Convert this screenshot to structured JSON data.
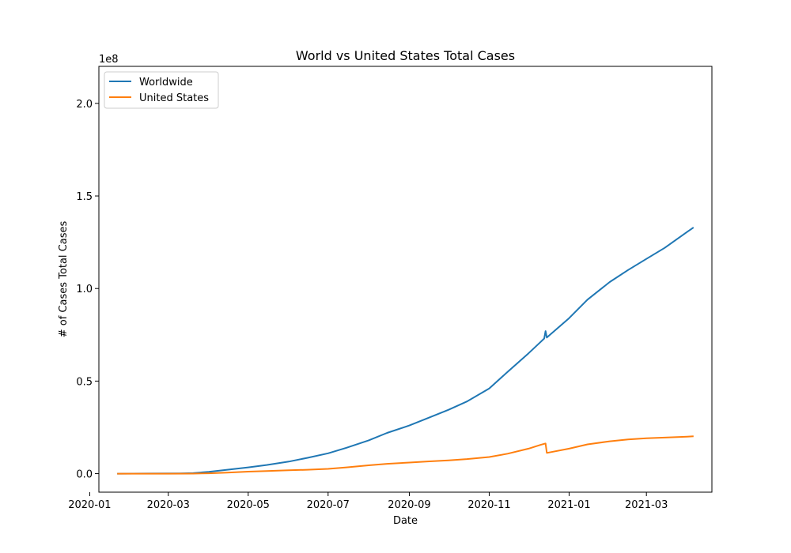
{
  "chart_data": {
    "type": "line",
    "title": "World vs United States Total Cases",
    "xlabel": "Date",
    "ylabel": "# of Cases Total Cases",
    "y_offset_label": "1e8",
    "xlim": [
      "2020-01-08",
      "2021-04-20"
    ],
    "ylim": [
      -0.1,
      2.2
    ],
    "y_multiplier": 100000000,
    "x_ticks": [
      "2020-01",
      "2020-03",
      "2020-05",
      "2020-07",
      "2020-09",
      "2020-11",
      "2021-01",
      "2021-03"
    ],
    "y_ticks": [
      "0.0",
      "0.5",
      "1.0",
      "1.5",
      "2.0"
    ],
    "y_tick_values": [
      0,
      0.5,
      1.0,
      1.5,
      2.0
    ],
    "legend_position": "upper-left",
    "grid": false,
    "series": [
      {
        "name": "Worldwide",
        "color": "#1f77b4",
        "points": [
          [
            "2020-01-22",
            0.0
          ],
          [
            "2020-02-15",
            0.0007
          ],
          [
            "2020-03-10",
            0.0012
          ],
          [
            "2020-03-20",
            0.003
          ],
          [
            "2020-04-01",
            0.01
          ],
          [
            "2020-04-15",
            0.021
          ],
          [
            "2020-05-01",
            0.034
          ],
          [
            "2020-05-15",
            0.047
          ],
          [
            "2020-06-01",
            0.065
          ],
          [
            "2020-06-15",
            0.085
          ],
          [
            "2020-07-01",
            0.11
          ],
          [
            "2020-07-15",
            0.14
          ],
          [
            "2020-08-01",
            0.18
          ],
          [
            "2020-08-15",
            0.22
          ],
          [
            "2020-09-01",
            0.26
          ],
          [
            "2020-09-15",
            0.3
          ],
          [
            "2020-10-01",
            0.345
          ],
          [
            "2020-10-15",
            0.39
          ],
          [
            "2020-11-01",
            0.46
          ],
          [
            "2020-11-15",
            0.55
          ],
          [
            "2020-12-01",
            0.65
          ],
          [
            "2020-12-10",
            0.71
          ],
          [
            "2020-12-13",
            0.73
          ],
          [
            "2020-12-14",
            0.77
          ],
          [
            "2020-12-15",
            0.735
          ],
          [
            "2021-01-01",
            0.84
          ],
          [
            "2021-01-15",
            0.94
          ],
          [
            "2021-02-01",
            1.035
          ],
          [
            "2021-02-15",
            1.1
          ],
          [
            "2021-03-01",
            1.16
          ],
          [
            "2021-03-15",
            1.22
          ],
          [
            "2021-04-01",
            1.305
          ],
          [
            "2021-04-06",
            1.33
          ]
        ]
      },
      {
        "name": "United States",
        "color": "#ff7f0e",
        "points": [
          [
            "2020-01-22",
            0.0
          ],
          [
            "2020-03-01",
            5e-05
          ],
          [
            "2020-03-20",
            0.0002
          ],
          [
            "2020-04-01",
            0.002
          ],
          [
            "2020-04-15",
            0.006
          ],
          [
            "2020-05-01",
            0.011
          ],
          [
            "2020-05-15",
            0.0145
          ],
          [
            "2020-06-01",
            0.018
          ],
          [
            "2020-06-15",
            0.021
          ],
          [
            "2020-07-01",
            0.026
          ],
          [
            "2020-07-15",
            0.034
          ],
          [
            "2020-08-01",
            0.045
          ],
          [
            "2020-08-15",
            0.053
          ],
          [
            "2020-09-01",
            0.06
          ],
          [
            "2020-09-15",
            0.066
          ],
          [
            "2020-10-01",
            0.072
          ],
          [
            "2020-10-15",
            0.079
          ],
          [
            "2020-11-01",
            0.09
          ],
          [
            "2020-11-15",
            0.108
          ],
          [
            "2020-12-01",
            0.135
          ],
          [
            "2020-12-10",
            0.155
          ],
          [
            "2020-12-13",
            0.161
          ],
          [
            "2020-12-14",
            0.163
          ],
          [
            "2020-12-15",
            0.112
          ],
          [
            "2021-01-01",
            0.135
          ],
          [
            "2021-01-15",
            0.158
          ],
          [
            "2021-02-01",
            0.175
          ],
          [
            "2021-02-15",
            0.185
          ],
          [
            "2021-03-01",
            0.191
          ],
          [
            "2021-03-15",
            0.195
          ],
          [
            "2021-04-01",
            0.2
          ],
          [
            "2021-04-06",
            0.202
          ]
        ]
      }
    ]
  }
}
